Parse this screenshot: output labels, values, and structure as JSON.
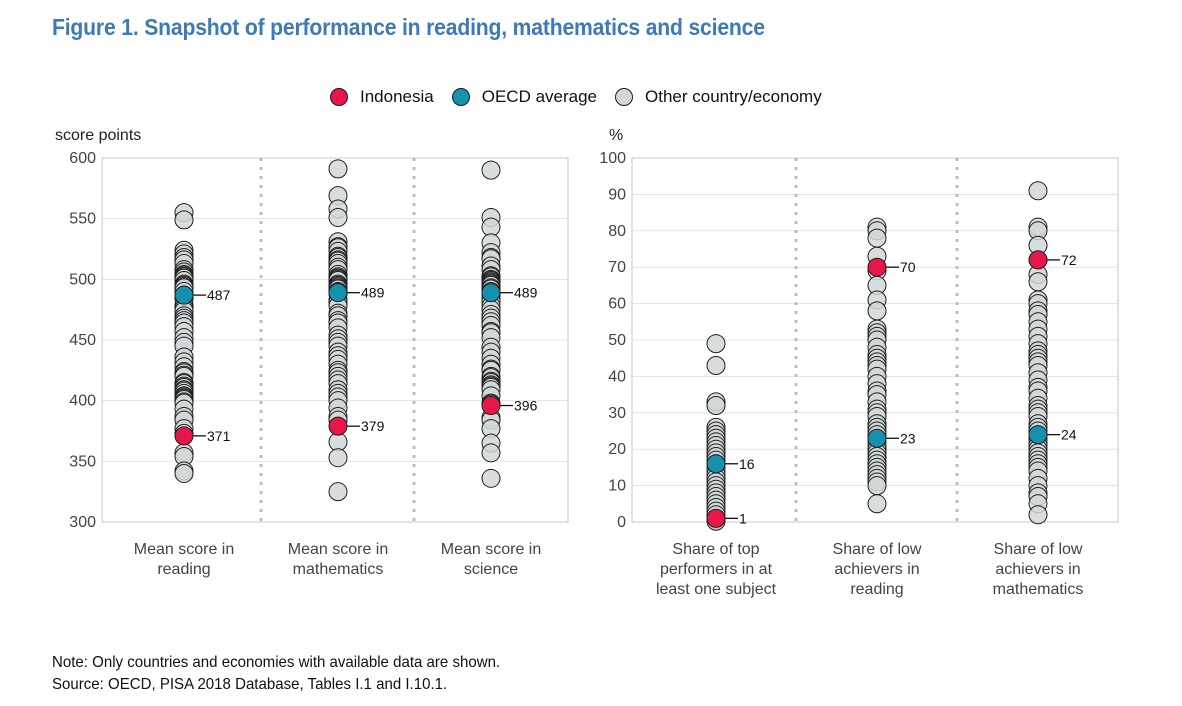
{
  "title": "Figure 1. Snapshot of performance in reading, mathematics and science",
  "legend": [
    {
      "label": "Indonesia",
      "color": "#e8174a"
    },
    {
      "label": "OECD average",
      "color": "#1591ae"
    },
    {
      "label": "Other country/economy",
      "color": "#d2d7d8"
    }
  ],
  "notes": {
    "note": "Note: Only countries and economies with available data are shown.",
    "source": "Source: OECD, PISA 2018 Database, Tables I.1 and I.10.1."
  },
  "chart_data": [
    {
      "type": "scatter",
      "ylabel": "score points",
      "ylim": [
        300,
        600
      ],
      "yticks": [
        300,
        350,
        400,
        450,
        500,
        550,
        600
      ],
      "grid": true,
      "categories": [
        "Mean score in\nreading",
        "Mean score in\nmathematics",
        "Mean score in\nscience"
      ],
      "other": [
        [
          555,
          549,
          524,
          521,
          518,
          516,
          513,
          508,
          506,
          504,
          503,
          502,
          501,
          499,
          496,
          495,
          494,
          493,
          490,
          487,
          486,
          485,
          484,
          479,
          478,
          476,
          474,
          470,
          468,
          466,
          464,
          461,
          457,
          452,
          448,
          445,
          436,
          432,
          428,
          424,
          423,
          421,
          420,
          415,
          414,
          412,
          411,
          409,
          408,
          406,
          404,
          403,
          402,
          401,
          399,
          398,
          393,
          387,
          384,
          377,
          373,
          357,
          354,
          342,
          340
        ],
        [
          591,
          569,
          558,
          551,
          531,
          527,
          526,
          523,
          519,
          518,
          516,
          515,
          513,
          510,
          508,
          504,
          502,
          501,
          500,
          499,
          496,
          495,
          494,
          493,
          492,
          490,
          489,
          488,
          483,
          482,
          481,
          478,
          472,
          470,
          466,
          464,
          460,
          454,
          451,
          448,
          445,
          440,
          437,
          434,
          430,
          425,
          423,
          420,
          417,
          414,
          409,
          406,
          403,
          400,
          394,
          387,
          384,
          366,
          353,
          325
        ],
        [
          590,
          551,
          543,
          530,
          522,
          518,
          517,
          511,
          508,
          503,
          502,
          500,
          499,
          498,
          497,
          496,
          495,
          493,
          492,
          490,
          488,
          487,
          484,
          483,
          482,
          478,
          475,
          471,
          468,
          465,
          462,
          457,
          456,
          452,
          444,
          440,
          435,
          430,
          426,
          425,
          420,
          419,
          416,
          415,
          413,
          412,
          411,
          409,
          404,
          398,
          397,
          386,
          384,
          377,
          365,
          357,
          336
        ]
      ],
      "oecd": [
        487,
        489,
        489
      ],
      "indonesia": [
        371,
        379,
        396
      ],
      "labels": {
        "oecd": [
          "487",
          "489",
          "489"
        ],
        "indonesia": [
          "371",
          "379",
          "396"
        ]
      }
    },
    {
      "type": "scatter",
      "ylabel": "%",
      "ylim": [
        0,
        100
      ],
      "yticks": [
        0,
        10,
        20,
        30,
        40,
        50,
        60,
        70,
        80,
        90,
        100
      ],
      "grid": true,
      "categories": [
        "Share of top\nperformers in at\nleast one subject",
        "Share of low\nachievers in\nreading",
        "Share of low\nachievers in\nmathematics"
      ],
      "other": [
        [
          49,
          43,
          33,
          32,
          26,
          25,
          24,
          23,
          22,
          21,
          20,
          19,
          18,
          17,
          16,
          15,
          14,
          13,
          12,
          11,
          10,
          9,
          8,
          7,
          6,
          5,
          4,
          3,
          2,
          1,
          0.5,
          0.2
        ],
        [
          81,
          80,
          78,
          73,
          69,
          65,
          61,
          58,
          53,
          52,
          51,
          50,
          48,
          46,
          45,
          44,
          43,
          42,
          40,
          38,
          36,
          35,
          33,
          31,
          30,
          29,
          27,
          26,
          25,
          24,
          22,
          21,
          20,
          19,
          18,
          17,
          16,
          15,
          14,
          13,
          12,
          11,
          10,
          5
        ],
        [
          91,
          81,
          80,
          76,
          72,
          68,
          66,
          61,
          60,
          58,
          57,
          55,
          53,
          51,
          49,
          47,
          46,
          45,
          44,
          43,
          41,
          39,
          37,
          36,
          34,
          32,
          31,
          30,
          29,
          27,
          26,
          25,
          23,
          22,
          21,
          20,
          19,
          18,
          17,
          16,
          15,
          14,
          12,
          10,
          8,
          7,
          5,
          2
        ]
      ],
      "oecd": [
        16,
        23,
        24
      ],
      "indonesia": [
        1,
        70,
        72
      ],
      "labels": {
        "oecd": [
          "16",
          "23",
          "24"
        ],
        "indonesia": [
          "1",
          "70",
          "72"
        ]
      }
    }
  ]
}
